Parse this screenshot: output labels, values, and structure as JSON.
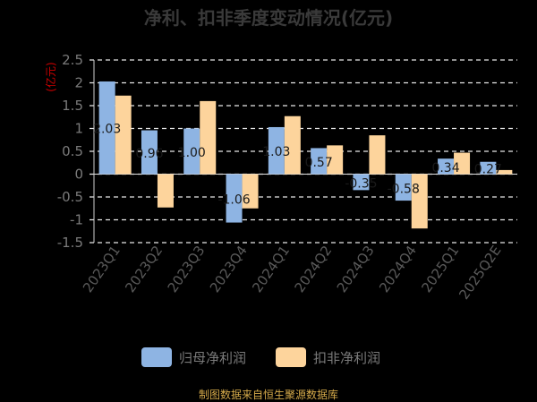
{
  "title": "净利、扣非季度变动情况(亿元)",
  "footer": "制图数据来自恒生聚源数据库",
  "chart_data": {
    "type": "bar",
    "title": "净利、扣非季度变动情况(亿元)",
    "ylabel": "(亿元)",
    "ylim": [
      -1.5,
      2.5
    ],
    "yticks": [
      2.5,
      2,
      1.5,
      1,
      0.5,
      0,
      -0.5,
      -1,
      -1.5
    ],
    "grid": true,
    "legend_position": "bottom",
    "categories": [
      "2023Q1",
      "2023Q2",
      "2023Q3",
      "2023Q4",
      "2024Q1",
      "2024Q2",
      "2024Q3",
      "2024Q4",
      "2025Q1",
      "2025Q2E"
    ],
    "series": [
      {
        "name": "归母净利润",
        "color": "#8eb4e3",
        "values": [
          2.03,
          0.96,
          1.0,
          -1.06,
          1.03,
          0.57,
          -0.35,
          -0.58,
          0.34,
          0.27
        ],
        "labels": [
          "2.03",
          "0.96",
          "1.00",
          "-1.06",
          "1.03",
          "0.57",
          "-0.35",
          "-0.58",
          "0.34",
          "0.27"
        ]
      },
      {
        "name": "扣非净利润",
        "color": "#fdd49c",
        "values": [
          1.72,
          -0.73,
          1.6,
          -0.75,
          1.27,
          0.63,
          0.85,
          -1.19,
          0.47,
          0.09
        ]
      }
    ]
  }
}
